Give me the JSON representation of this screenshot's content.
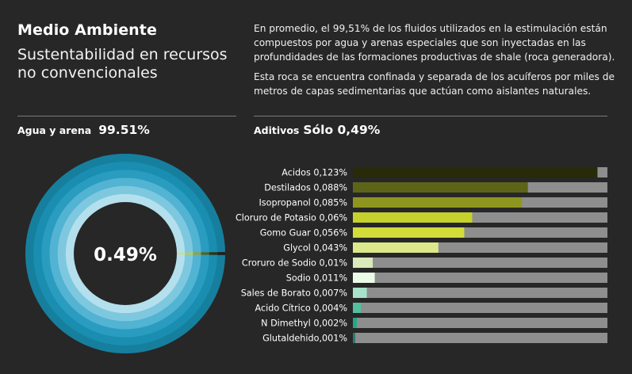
{
  "header": {
    "title": "Medio Ambiente",
    "subtitle": "Sustentabilidad en recursos no convencionales",
    "paragraph1": "En promedio, el 99,51% de los fluidos utilizados en la estimulación están compuestos por agua y arenas especiales que son inyectadas en las profundidades de las formaciones productivas de shale (roca generadora).",
    "paragraph2": "Esta roca se encuentra confinada y separada de los acuíferos por miles de metros de capas sedimentarias que actúan como aislantes naturales."
  },
  "left_panel": {
    "label": "Agua y arena",
    "value": "99.51%",
    "center_label": "0.49%"
  },
  "right_panel": {
    "label": "Aditivos",
    "value": "Sólo 0,49%"
  },
  "colors": {
    "background": "#272727",
    "bar_track": "#8e8e8e",
    "ring_colors": [
      "#167f9e",
      "#1a8eb0",
      "#2a9cc0",
      "#52b3d3",
      "#7ec8df",
      "#b4e0ee"
    ]
  },
  "chart_data": [
    {
      "type": "pie",
      "title": "",
      "categories": [
        "Agua y arena",
        "Aditivos"
      ],
      "values": [
        99.51,
        0.49
      ],
      "center_label": "0.49%",
      "ring_count": 6
    },
    {
      "type": "bar",
      "orientation": "horizontal",
      "title": "",
      "xlim": [
        0,
        0.128
      ],
      "categories": [
        "Acidos 0,123%",
        "Destilados 0,088%",
        "Isopropanol 0,085%",
        "Cloruro de Potasio 0,06%",
        "Gomo Guar 0,056%",
        "Glycol 0,043%",
        "Croruro de Sodio 0,01%",
        "Sodio 0,011%",
        "Sales de Borato 0,007%",
        "Acido Cítrico 0,004%",
        "N Dimethyl 0,002%",
        "Glutaldehido,001%"
      ],
      "values": [
        0.123,
        0.088,
        0.085,
        0.06,
        0.056,
        0.043,
        0.01,
        0.011,
        0.007,
        0.004,
        0.002,
        0.001
      ],
      "colors": [
        "#272b08",
        "#5d6419",
        "#8e961f",
        "#c5d12c",
        "#d2dd3a",
        "#dce88a",
        "#dbeabb",
        "#ebfbe6",
        "#a8e2cb",
        "#53bf9d",
        "#22a886",
        "#2a7a6c"
      ]
    }
  ]
}
